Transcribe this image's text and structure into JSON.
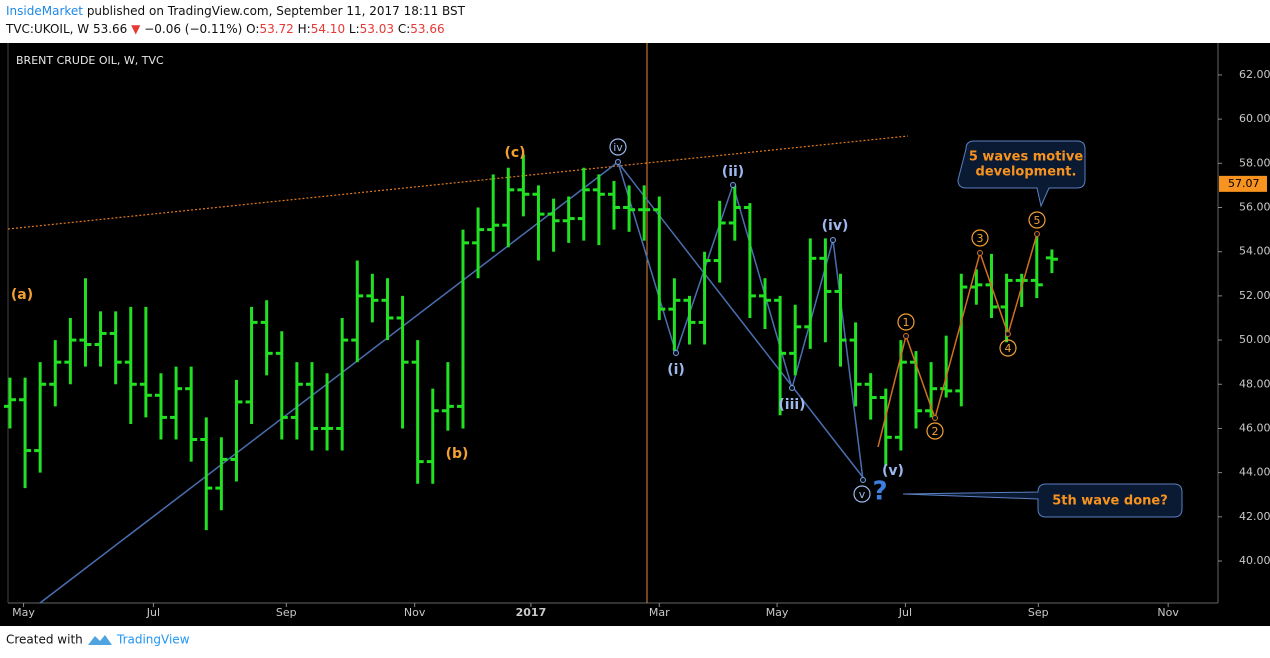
{
  "header": {
    "author": "InsideMarket",
    "published": "published on TradingView.com, September 11, 2017 18:11 BST",
    "symbol": "TVC:UKOIL, W",
    "last": "53.66",
    "change": "−0.06 (−0.11%)",
    "o_label": "O:",
    "o": "53.72",
    "h_label": "H:",
    "h": "54.10",
    "l_label": "L:",
    "l": "53.03",
    "c_label": "C:",
    "c": "53.66"
  },
  "chart_data": {
    "type": "ohlc",
    "title": "BRENT CRUDE OIL, W, TVC",
    "color": "#22e022",
    "x": [
      0,
      1,
      2,
      3,
      4,
      5,
      6,
      7,
      8,
      9,
      10,
      11,
      12,
      13,
      14,
      15,
      16,
      17,
      18,
      19,
      20,
      21,
      22,
      23,
      24,
      25,
      26,
      27,
      28,
      29,
      30,
      31,
      32,
      33,
      34,
      35,
      36,
      37,
      38,
      39,
      40,
      41,
      42,
      43,
      44,
      45,
      46,
      47,
      48,
      49,
      50,
      51,
      52,
      53,
      54,
      55,
      56,
      57,
      58,
      59,
      60,
      61,
      62,
      63,
      64,
      65,
      66,
      67,
      68,
      69
    ],
    "bars": [
      [
        47.0,
        48.3,
        46.0,
        47.3
      ],
      [
        47.3,
        48.3,
        43.3,
        45.0
      ],
      [
        45.0,
        49.0,
        44.0,
        48.0
      ],
      [
        48.0,
        50.0,
        47.0,
        49.0
      ],
      [
        49.0,
        51.0,
        48.0,
        50.0
      ],
      [
        50.0,
        52.8,
        48.8,
        49.8
      ],
      [
        49.8,
        51.3,
        48.8,
        50.3
      ],
      [
        50.3,
        51.3,
        48.0,
        49.0
      ],
      [
        49.0,
        51.5,
        46.2,
        48.0
      ],
      [
        48.0,
        51.5,
        46.5,
        47.5
      ],
      [
        47.5,
        48.5,
        45.5,
        46.5
      ],
      [
        46.5,
        48.8,
        45.5,
        47.8
      ],
      [
        47.8,
        48.8,
        44.5,
        45.5
      ],
      [
        45.5,
        46.5,
        41.4,
        43.3
      ],
      [
        43.3,
        45.6,
        42.3,
        44.6
      ],
      [
        44.6,
        48.2,
        43.6,
        47.2
      ],
      [
        47.2,
        51.5,
        46.2,
        50.8
      ],
      [
        50.8,
        51.8,
        48.4,
        49.4
      ],
      [
        49.4,
        50.4,
        45.5,
        46.5
      ],
      [
        46.5,
        49.0,
        45.5,
        48.0
      ],
      [
        48.0,
        49.0,
        45.0,
        46.0
      ],
      [
        46.0,
        48.5,
        45.0,
        46.0
      ],
      [
        46.0,
        51.0,
        45.0,
        50.0
      ],
      [
        50.0,
        53.6,
        49.0,
        52.0
      ],
      [
        52.0,
        53.0,
        50.8,
        51.8
      ],
      [
        51.8,
        52.8,
        50.0,
        51.0
      ],
      [
        51.0,
        52.0,
        46.0,
        49.0
      ],
      [
        49.0,
        50.0,
        43.5,
        44.5
      ],
      [
        44.5,
        47.8,
        43.5,
        46.8
      ],
      [
        46.8,
        49.0,
        45.9,
        47.0
      ],
      [
        47.0,
        55.0,
        46.0,
        54.4
      ],
      [
        54.4,
        56.0,
        52.8,
        55.0
      ],
      [
        55.0,
        57.5,
        54.0,
        55.2
      ],
      [
        55.2,
        57.8,
        54.2,
        56.8
      ],
      [
        56.8,
        58.4,
        55.6,
        56.6
      ],
      [
        56.6,
        57.0,
        53.6,
        55.7
      ],
      [
        55.7,
        56.4,
        54.0,
        55.4
      ],
      [
        55.4,
        56.5,
        54.4,
        55.5
      ],
      [
        55.5,
        57.8,
        54.5,
        56.8
      ],
      [
        56.8,
        57.5,
        54.3,
        56.6
      ],
      [
        56.6,
        57.2,
        55.0,
        56.0
      ],
      [
        56.0,
        57.0,
        54.9,
        55.9
      ],
      [
        55.9,
        57.0,
        54.5,
        55.9
      ],
      [
        55.9,
        56.5,
        50.9,
        51.4
      ],
      [
        51.4,
        52.8,
        49.5,
        51.8
      ],
      [
        51.8,
        52.0,
        49.8,
        50.8
      ],
      [
        50.8,
        54.0,
        49.8,
        53.6
      ],
      [
        53.6,
        56.3,
        52.6,
        55.3
      ],
      [
        55.3,
        57.0,
        54.5,
        56.0
      ],
      [
        56.0,
        56.2,
        51.0,
        52.0
      ],
      [
        52.0,
        52.8,
        50.5,
        51.8
      ],
      [
        51.8,
        52.0,
        46.6,
        49.4
      ],
      [
        49.4,
        51.6,
        48.4,
        50.6
      ],
      [
        50.6,
        54.6,
        49.6,
        53.7
      ],
      [
        53.7,
        54.6,
        49.9,
        52.2
      ],
      [
        52.2,
        53.0,
        48.8,
        50.0
      ],
      [
        50.0,
        50.8,
        47.0,
        48.0
      ],
      [
        48.0,
        48.5,
        46.4,
        47.4
      ],
      [
        47.4,
        47.8,
        44.3,
        45.6
      ],
      [
        45.6,
        50.0,
        45.0,
        49.0
      ],
      [
        49.0,
        49.5,
        46.0,
        46.8
      ],
      [
        46.8,
        49.0,
        46.5,
        47.8
      ],
      [
        47.8,
        50.2,
        47.4,
        47.7
      ],
      [
        47.7,
        53.0,
        47.0,
        52.4
      ],
      [
        52.4,
        53.2,
        51.6,
        52.5
      ],
      [
        52.5,
        53.9,
        51.0,
        51.5
      ],
      [
        51.5,
        53.0,
        49.9,
        52.7
      ],
      [
        52.7,
        53.0,
        51.5,
        52.7
      ],
      [
        52.7,
        54.7,
        51.9,
        52.5
      ],
      [
        53.72,
        54.1,
        53.03,
        53.66
      ]
    ],
    "xlim": [
      -0.13,
      80.0
    ],
    "xticks": [
      {
        "value": 0.9,
        "label": "May"
      },
      {
        "value": 9.5,
        "label": "Jul"
      },
      {
        "value": 18.3,
        "label": "Sep"
      },
      {
        "value": 26.8,
        "label": "Nov"
      },
      {
        "value": 34.5,
        "label": "2017"
      },
      {
        "value": 43.0,
        "label": "Mar"
      },
      {
        "value": 50.8,
        "label": "May"
      },
      {
        "value": 59.3,
        "label": "Jul"
      },
      {
        "value": 68.1,
        "label": "Sep"
      },
      {
        "value": 76.7,
        "label": "Nov"
      }
    ],
    "ylim": [
      38.1,
      63.4
    ],
    "yticks": [
      {
        "value": 40,
        "label": "40.00"
      },
      {
        "value": 42,
        "label": "42.00"
      },
      {
        "value": 44,
        "label": "44.00"
      },
      {
        "value": 46,
        "label": "46.00"
      },
      {
        "value": 48,
        "label": "48.00"
      },
      {
        "value": 50,
        "label": "50.00"
      },
      {
        "value": 52,
        "label": "52.00"
      },
      {
        "value": 54,
        "label": "54.00"
      },
      {
        "value": 56,
        "label": "56.00"
      },
      {
        "value": 58,
        "label": "58.00"
      },
      {
        "value": 60,
        "label": "60.00"
      },
      {
        "value": 62,
        "label": "62.00"
      }
    ],
    "price_marker": 57.07,
    "wave_labels": [
      "(a)",
      "(b)",
      "(c)",
      "iv",
      "(i)",
      "(ii)",
      "(iii)",
      "(iv)",
      "(v)",
      "v",
      "?",
      "1",
      "2",
      "3",
      "4",
      "5"
    ],
    "callouts": [
      [
        "5 waves motive",
        "development."
      ],
      [
        "5th wave done?"
      ]
    ]
  },
  "footer": {
    "created": "Created with",
    "brand": "TradingView"
  }
}
